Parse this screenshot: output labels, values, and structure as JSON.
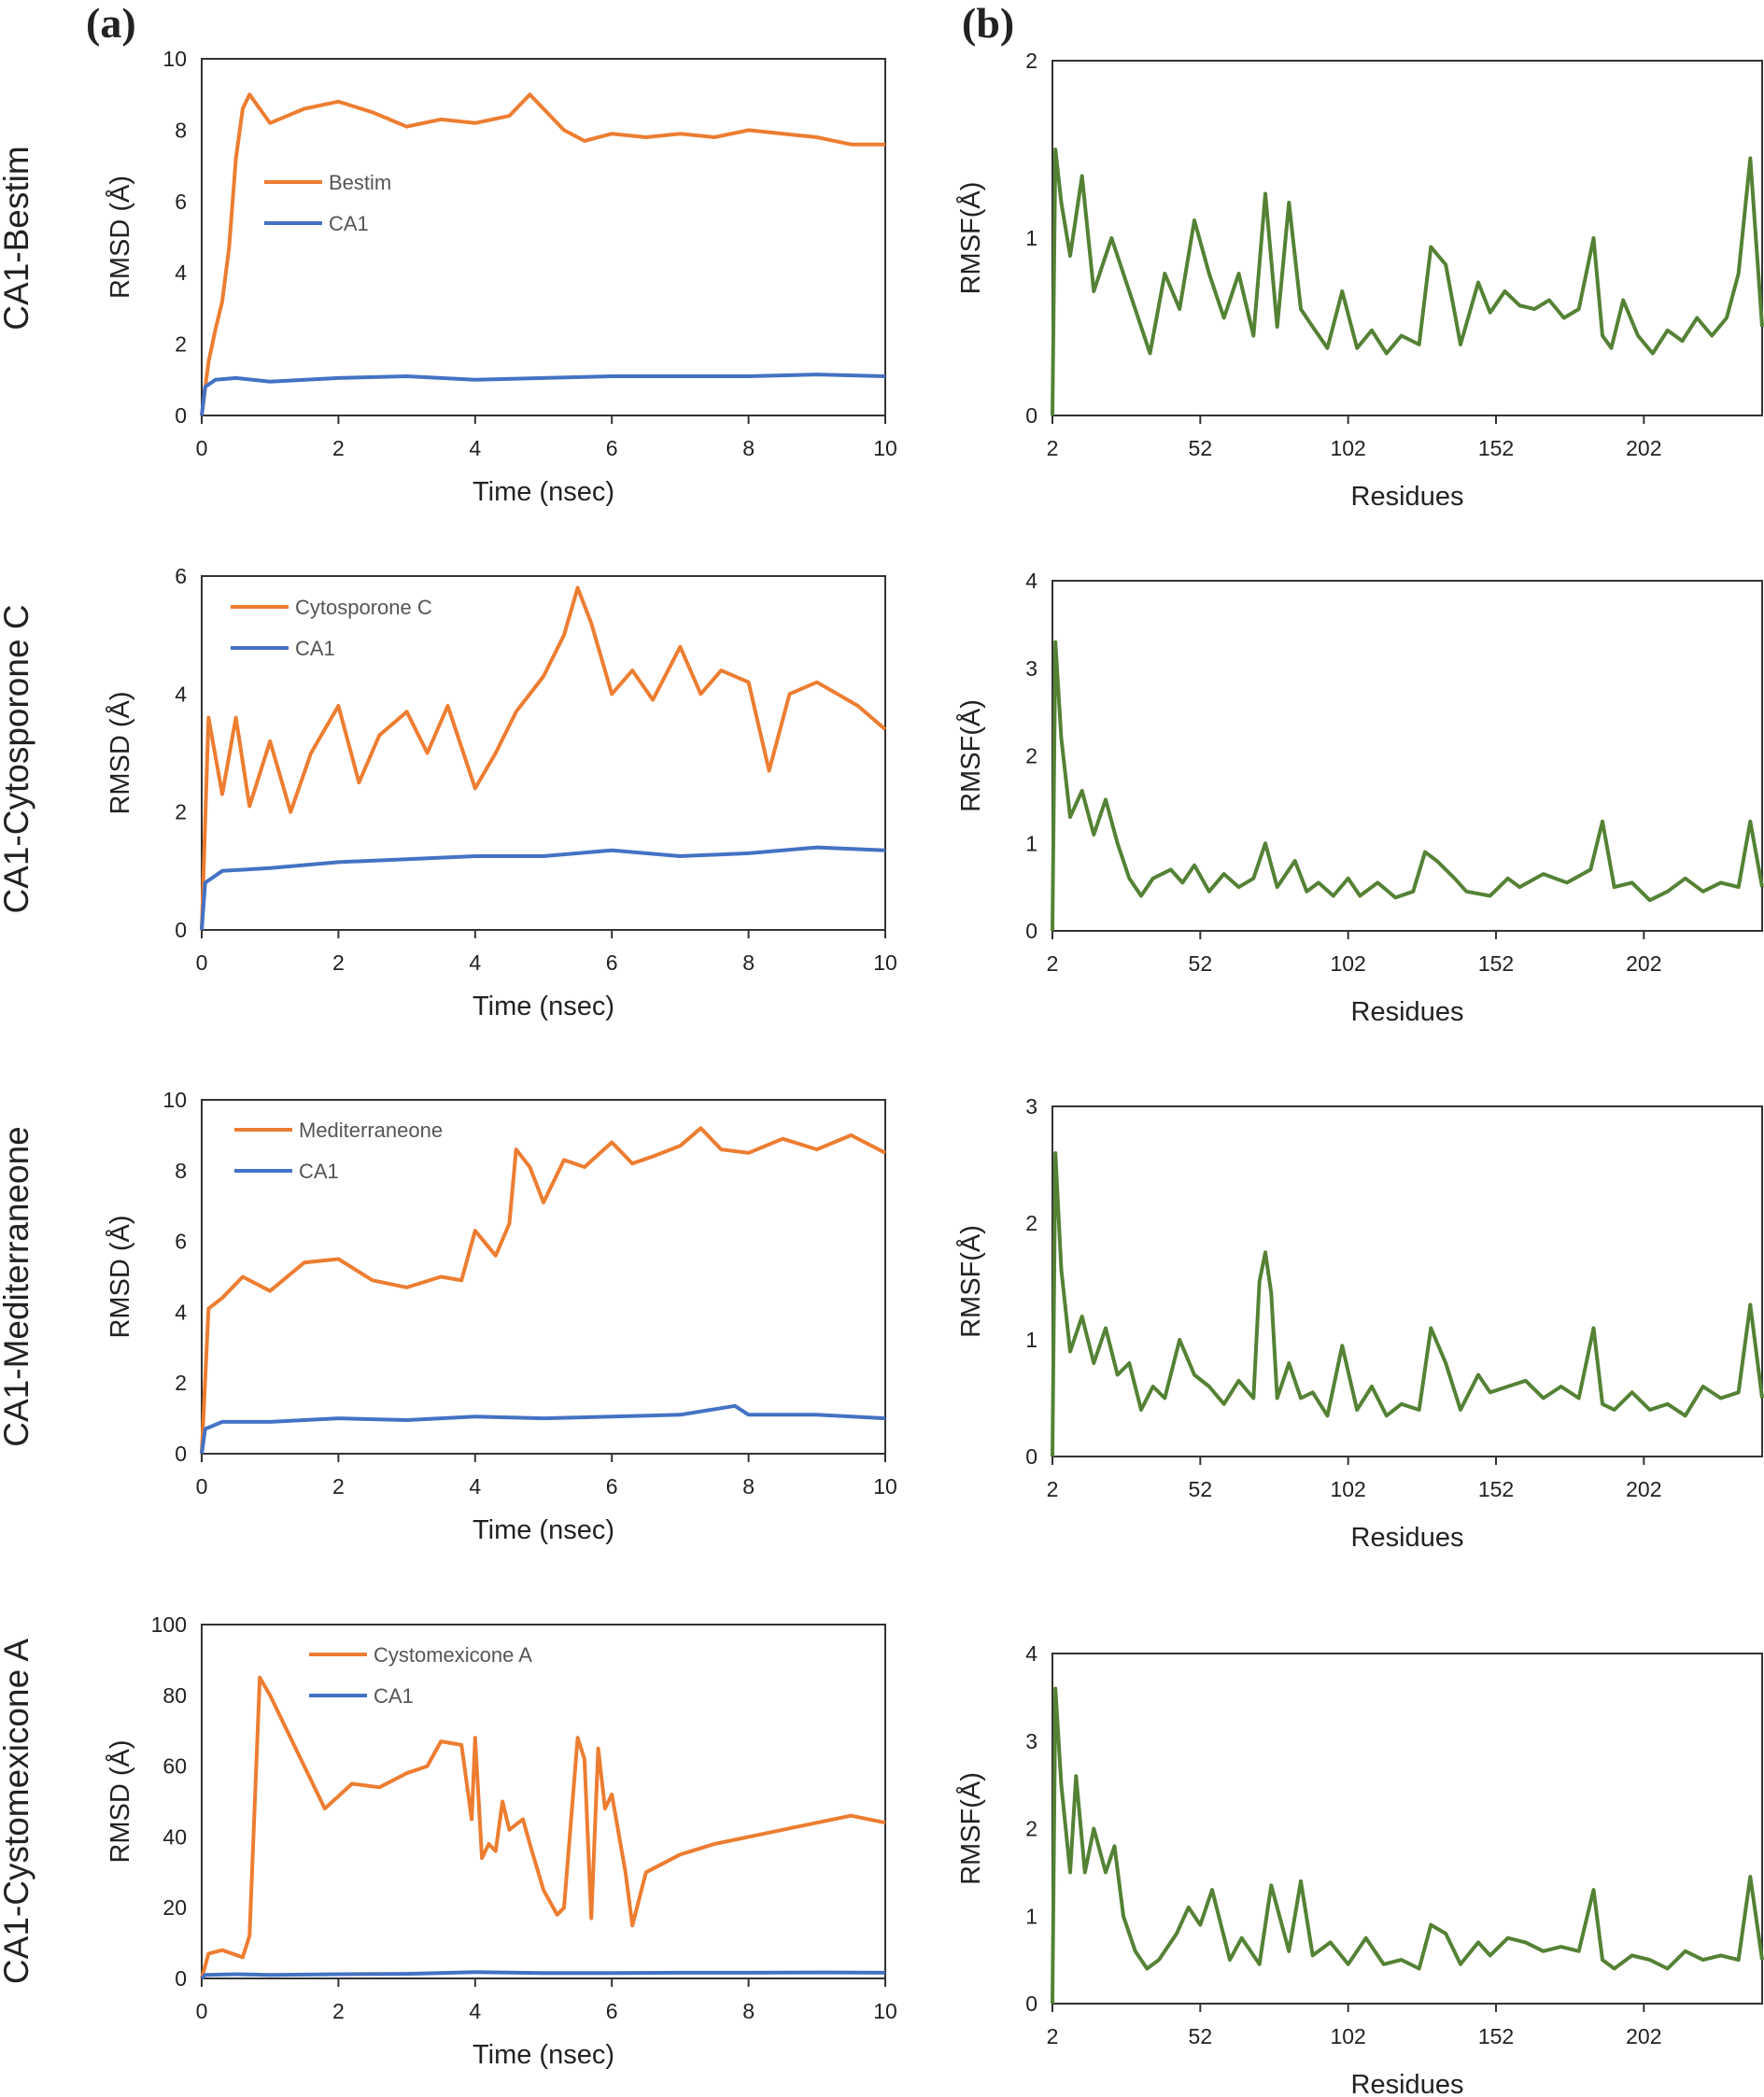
{
  "figure": {
    "panel_a_label": "(a)",
    "panel_b_label": "(b)",
    "rows": [
      {
        "label": "CA1-Bestim"
      },
      {
        "label": "CA1-Cytosporone C"
      },
      {
        "label": "CA1-Mediterraneone"
      },
      {
        "label": "CA1-Cystomexicone A"
      }
    ]
  },
  "colors": {
    "ligand": "#ED7D31",
    "protein": "#4472C4",
    "rmsf": "#548235",
    "axis": "#333333"
  },
  "chart_data": [
    {
      "id": "rmsd-bestim",
      "type": "line",
      "panel": "a",
      "row": 0,
      "xlabel": "Time (nsec)",
      "ylabel": "RMSD (Å)",
      "xlim": [
        0,
        10
      ],
      "ylim": [
        0,
        10
      ],
      "xticks": [
        "0",
        "2",
        "4",
        "6",
        "8",
        "10"
      ],
      "yticks": [
        "0",
        "2",
        "4",
        "6",
        "8",
        "10"
      ],
      "series": [
        {
          "name": "Bestim",
          "color": "#ED7D31",
          "x": [
            0,
            0.1,
            0.2,
            0.3,
            0.4,
            0.5,
            0.6,
            0.7,
            1,
            1.5,
            2,
            2.5,
            3,
            3.5,
            4,
            4.5,
            4.8,
            5,
            5.3,
            5.6,
            6,
            6.5,
            7,
            7.5,
            8,
            8.5,
            9,
            9.5,
            10
          ],
          "y": [
            0,
            1.5,
            2.4,
            3.2,
            4.7,
            7.2,
            8.6,
            9.0,
            8.2,
            8.6,
            8.8,
            8.5,
            8.1,
            8.3,
            8.2,
            8.4,
            9.0,
            8.6,
            8.0,
            7.7,
            7.9,
            7.8,
            7.9,
            7.8,
            8.0,
            7.9,
            7.8,
            7.6,
            7.6
          ]
        },
        {
          "name": "CA1",
          "color": "#4472C4",
          "x": [
            0,
            0.05,
            0.2,
            0.5,
            1,
            2,
            3,
            4,
            5,
            6,
            7,
            8,
            9,
            10
          ],
          "y": [
            0,
            0.8,
            1.0,
            1.05,
            0.95,
            1.05,
            1.1,
            1.0,
            1.05,
            1.1,
            1.1,
            1.1,
            1.15,
            1.1
          ]
        }
      ]
    },
    {
      "id": "rmsf-bestim",
      "type": "line",
      "panel": "b",
      "row": 0,
      "xlabel": "Residues",
      "ylabel": "RMSF(Å)",
      "xlim": [
        2,
        242
      ],
      "ylim": [
        0,
        2
      ],
      "xticks": [
        "2",
        "52",
        "102",
        "152",
        "202"
      ],
      "yticks": [
        "0",
        "1",
        "2"
      ],
      "series": [
        {
          "name": "RMSF",
          "color": "#548235",
          "x": [
            2,
            3,
            5,
            8,
            12,
            16,
            22,
            28,
            35,
            40,
            45,
            50,
            55,
            60,
            65,
            70,
            74,
            78,
            82,
            86,
            90,
            95,
            100,
            105,
            110,
            115,
            120,
            126,
            130,
            135,
            140,
            146,
            150,
            155,
            160,
            165,
            170,
            175,
            180,
            185,
            188,
            191,
            195,
            200,
            205,
            210,
            215,
            220,
            225,
            230,
            234,
            238,
            242
          ],
          "y": [
            0,
            1.5,
            1.2,
            0.9,
            1.35,
            0.7,
            1.0,
            0.7,
            0.35,
            0.8,
            0.6,
            1.1,
            0.8,
            0.55,
            0.8,
            0.45,
            1.25,
            0.5,
            1.2,
            0.6,
            0.5,
            0.38,
            0.7,
            0.38,
            0.48,
            0.35,
            0.45,
            0.4,
            0.95,
            0.85,
            0.4,
            0.75,
            0.58,
            0.7,
            0.62,
            0.6,
            0.65,
            0.55,
            0.6,
            1.0,
            0.45,
            0.38,
            0.65,
            0.45,
            0.35,
            0.48,
            0.42,
            0.55,
            0.45,
            0.55,
            0.8,
            1.45,
            0.5
          ]
        }
      ]
    },
    {
      "id": "rmsd-cytosporone",
      "type": "line",
      "panel": "a",
      "row": 1,
      "xlabel": "Time (nsec)",
      "ylabel": "RMSD (Å)",
      "legend": [
        "Cytosporone C",
        "CA1"
      ],
      "xlim": [
        0,
        10
      ],
      "ylim": [
        0,
        6
      ],
      "xticks": [
        "0",
        "2",
        "4",
        "6",
        "8",
        "10"
      ],
      "yticks": [
        "0",
        "2",
        "4",
        "6"
      ],
      "series": [
        {
          "name": "Cytosporone C",
          "color": "#ED7D31",
          "x": [
            0,
            0.1,
            0.3,
            0.5,
            0.7,
            1,
            1.3,
            1.6,
            2,
            2.3,
            2.6,
            3,
            3.3,
            3.6,
            4,
            4.3,
            4.6,
            5,
            5.3,
            5.5,
            5.7,
            6,
            6.3,
            6.6,
            7,
            7.3,
            7.6,
            8,
            8.3,
            8.6,
            9,
            9.3,
            9.6,
            10
          ],
          "y": [
            0,
            3.6,
            2.3,
            3.6,
            2.1,
            3.2,
            2.0,
            3.0,
            3.8,
            2.5,
            3.3,
            3.7,
            3.0,
            3.8,
            2.4,
            3.0,
            3.7,
            4.3,
            5.0,
            5.8,
            5.2,
            4.0,
            4.4,
            3.9,
            4.8,
            4.0,
            4.4,
            4.2,
            2.7,
            4.0,
            4.2,
            4.0,
            3.8,
            3.4
          ]
        },
        {
          "name": "CA1",
          "color": "#4472C4",
          "x": [
            0,
            0.05,
            0.3,
            1,
            2,
            3,
            4,
            5,
            6,
            7,
            8,
            9,
            10
          ],
          "y": [
            0,
            0.8,
            1.0,
            1.05,
            1.15,
            1.2,
            1.25,
            1.25,
            1.35,
            1.25,
            1.3,
            1.4,
            1.35
          ]
        }
      ]
    },
    {
      "id": "rmsf-cytosporone",
      "type": "line",
      "panel": "b",
      "row": 1,
      "xlabel": "Residues",
      "ylabel": "RMSF(Å)",
      "xlim": [
        2,
        242
      ],
      "ylim": [
        0,
        4
      ],
      "xticks": [
        "2",
        "52",
        "102",
        "152",
        "202"
      ],
      "yticks": [
        "0",
        "1",
        "2",
        "3",
        "4"
      ],
      "series": [
        {
          "name": "RMSF",
          "color": "#548235",
          "x": [
            2,
            3,
            5,
            8,
            12,
            16,
            20,
            24,
            28,
            32,
            36,
            42,
            46,
            50,
            55,
            60,
            65,
            70,
            74,
            78,
            84,
            88,
            92,
            97,
            102,
            106,
            112,
            118,
            124,
            128,
            132,
            138,
            142,
            150,
            156,
            160,
            168,
            176,
            184,
            188,
            192,
            198,
            204,
            210,
            216,
            222,
            228,
            234,
            238,
            242
          ],
          "y": [
            0,
            3.3,
            2.2,
            1.3,
            1.6,
            1.1,
            1.5,
            1.0,
            0.6,
            0.4,
            0.6,
            0.7,
            0.55,
            0.75,
            0.45,
            0.65,
            0.5,
            0.6,
            1.0,
            0.5,
            0.8,
            0.45,
            0.55,
            0.4,
            0.6,
            0.4,
            0.55,
            0.38,
            0.45,
            0.9,
            0.8,
            0.6,
            0.45,
            0.4,
            0.6,
            0.5,
            0.65,
            0.55,
            0.7,
            1.25,
            0.5,
            0.55,
            0.35,
            0.45,
            0.6,
            0.45,
            0.55,
            0.5,
            1.25,
            0.5
          ]
        }
      ]
    },
    {
      "id": "rmsd-mediterraneone",
      "type": "line",
      "panel": "a",
      "row": 2,
      "xlabel": "Time (nsec)",
      "ylabel": "RMSD (Å)",
      "xlim": [
        0,
        10
      ],
      "ylim": [
        0,
        10
      ],
      "xticks": [
        "0",
        "2",
        "4",
        "6",
        "8",
        "10"
      ],
      "yticks": [
        "0",
        "2",
        "4",
        "6",
        "8",
        "10"
      ],
      "series": [
        {
          "name": "Mediterraneone",
          "color": "#ED7D31",
          "x": [
            0,
            0.1,
            0.3,
            0.6,
            1,
            1.5,
            2,
            2.5,
            3,
            3.5,
            3.8,
            4,
            4.3,
            4.5,
            4.6,
            4.8,
            5,
            5.3,
            5.6,
            6,
            6.3,
            6.6,
            7,
            7.3,
            7.6,
            8,
            8.5,
            9,
            9.5,
            10
          ],
          "y": [
            0,
            4.1,
            4.4,
            5.0,
            4.6,
            5.4,
            5.5,
            4.9,
            4.7,
            5.0,
            4.9,
            6.3,
            5.6,
            6.5,
            8.6,
            8.1,
            7.1,
            8.3,
            8.1,
            8.8,
            8.2,
            8.4,
            8.7,
            9.2,
            8.6,
            8.5,
            8.9,
            8.6,
            9.0,
            8.5
          ]
        },
        {
          "name": "CA1",
          "color": "#4472C4",
          "x": [
            0,
            0.05,
            0.3,
            1,
            2,
            3,
            4,
            5,
            6,
            7,
            7.8,
            8,
            9,
            10
          ],
          "y": [
            0,
            0.7,
            0.9,
            0.9,
            1.0,
            0.95,
            1.05,
            1.0,
            1.05,
            1.1,
            1.35,
            1.1,
            1.1,
            1.0
          ]
        }
      ]
    },
    {
      "id": "rmsf-mediterraneone",
      "type": "line",
      "panel": "b",
      "row": 2,
      "xlabel": "Residues",
      "ylabel": "RMSF(Å)",
      "xlim": [
        2,
        242
      ],
      "ylim": [
        0,
        3
      ],
      "xticks": [
        "2",
        "52",
        "102",
        "152",
        "202"
      ],
      "yticks": [
        "0",
        "1",
        "2",
        "3"
      ],
      "series": [
        {
          "name": "RMSF",
          "color": "#548235",
          "x": [
            2,
            3,
            5,
            8,
            12,
            16,
            20,
            24,
            28,
            32,
            36,
            40,
            45,
            50,
            55,
            60,
            65,
            70,
            72,
            74,
            76,
            78,
            82,
            86,
            90,
            95,
            100,
            105,
            110,
            115,
            120,
            126,
            130,
            135,
            140,
            146,
            150,
            156,
            162,
            168,
            174,
            180,
            185,
            188,
            192,
            198,
            204,
            210,
            216,
            222,
            228,
            234,
            238,
            242
          ],
          "y": [
            0,
            2.6,
            1.6,
            0.9,
            1.2,
            0.8,
            1.1,
            0.7,
            0.8,
            0.4,
            0.6,
            0.5,
            1.0,
            0.7,
            0.6,
            0.45,
            0.65,
            0.5,
            1.5,
            1.75,
            1.4,
            0.5,
            0.8,
            0.5,
            0.55,
            0.35,
            0.95,
            0.4,
            0.6,
            0.35,
            0.45,
            0.4,
            1.1,
            0.8,
            0.4,
            0.7,
            0.55,
            0.6,
            0.65,
            0.5,
            0.6,
            0.5,
            1.1,
            0.45,
            0.4,
            0.55,
            0.4,
            0.45,
            0.35,
            0.6,
            0.5,
            0.55,
            1.3,
            0.5
          ]
        }
      ]
    },
    {
      "id": "rmsd-cystomexicone",
      "type": "line",
      "panel": "a",
      "row": 3,
      "xlabel": "Time (nsec)",
      "ylabel": "RMSD (Å)",
      "xlim": [
        0,
        10
      ],
      "ylim": [
        0,
        100
      ],
      "xticks": [
        "0",
        "2",
        "4",
        "6",
        "8",
        "10"
      ],
      "yticks": [
        "0",
        "20",
        "40",
        "60",
        "80",
        "100"
      ],
      "series": [
        {
          "name": "Cystomexicone A",
          "color": "#ED7D31",
          "x": [
            0,
            0.1,
            0.3,
            0.6,
            0.7,
            0.85,
            1,
            1.2,
            1.5,
            1.8,
            2.2,
            2.6,
            3.0,
            3.3,
            3.5,
            3.8,
            3.95,
            4.0,
            4.1,
            4.2,
            4.3,
            4.4,
            4.5,
            4.7,
            4.8,
            5.0,
            5.2,
            5.3,
            5.5,
            5.6,
            5.7,
            5.8,
            5.9,
            6.0,
            6.2,
            6.3,
            6.5,
            7.0,
            7.5,
            8.0,
            8.5,
            9.0,
            9.5,
            10
          ],
          "y": [
            0,
            7,
            8,
            6,
            12,
            85,
            80,
            72,
            60,
            48,
            55,
            54,
            58,
            60,
            67,
            66,
            45,
            68,
            34,
            38,
            36,
            50,
            42,
            45,
            38,
            25,
            18,
            20,
            68,
            62,
            17,
            65,
            48,
            52,
            30,
            15,
            30,
            35,
            38,
            40,
            42,
            44,
            46,
            44
          ]
        },
        {
          "name": "CA1",
          "color": "#4472C4",
          "x": [
            0,
            0.05,
            0.5,
            1,
            2,
            3,
            4,
            5,
            6,
            7,
            8,
            9,
            10
          ],
          "y": [
            0,
            1,
            1.2,
            1.0,
            1.2,
            1.3,
            1.8,
            1.5,
            1.5,
            1.6,
            1.6,
            1.7,
            1.6
          ]
        }
      ]
    },
    {
      "id": "rmsf-cystomexicone",
      "type": "line",
      "panel": "b",
      "row": 3,
      "xlabel": "Residues",
      "ylabel": "RMSF(Å)",
      "xlim": [
        2,
        242
      ],
      "ylim": [
        0,
        4
      ],
      "xticks": [
        "2",
        "52",
        "102",
        "152",
        "202"
      ],
      "yticks": [
        "0",
        "1",
        "2",
        "3",
        "4"
      ],
      "series": [
        {
          "name": "RMSF",
          "color": "#548235",
          "x": [
            2,
            3,
            5,
            8,
            10,
            13,
            16,
            20,
            23,
            26,
            30,
            34,
            38,
            44,
            48,
            52,
            56,
            62,
            66,
            72,
            76,
            82,
            86,
            90,
            96,
            102,
            108,
            114,
            120,
            126,
            130,
            135,
            140,
            146,
            150,
            156,
            162,
            168,
            174,
            180,
            185,
            188,
            192,
            198,
            204,
            210,
            216,
            222,
            228,
            234,
            238,
            242
          ],
          "y": [
            0,
            3.6,
            2.5,
            1.5,
            2.6,
            1.5,
            2.0,
            1.5,
            1.8,
            1.0,
            0.6,
            0.4,
            0.5,
            0.8,
            1.1,
            0.9,
            1.3,
            0.5,
            0.75,
            0.45,
            1.35,
            0.6,
            1.4,
            0.55,
            0.7,
            0.45,
            0.75,
            0.45,
            0.5,
            0.4,
            0.9,
            0.8,
            0.45,
            0.7,
            0.55,
            0.75,
            0.7,
            0.6,
            0.65,
            0.6,
            1.3,
            0.5,
            0.4,
            0.55,
            0.5,
            0.4,
            0.6,
            0.5,
            0.55,
            0.5,
            1.45,
            0.5
          ]
        }
      ]
    }
  ]
}
